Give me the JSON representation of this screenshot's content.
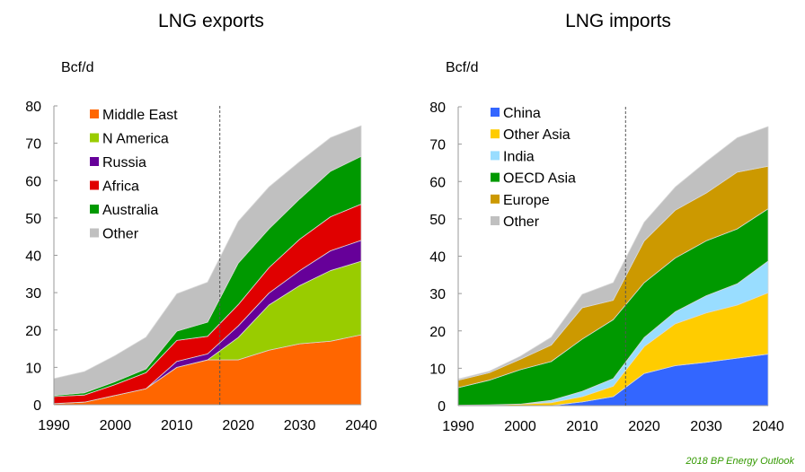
{
  "footer": "2018 BP Energy Outlook",
  "chart_data": [
    {
      "type": "area",
      "stacked": true,
      "title": "LNG exports",
      "ylabel": "Bcf/d",
      "xlabel": "",
      "ylim": [
        0,
        80
      ],
      "yticks": [
        0,
        10,
        20,
        30,
        40,
        50,
        60,
        70,
        80
      ],
      "xticks": [
        1990,
        2000,
        2010,
        2020,
        2030,
        2040
      ],
      "x": [
        1990,
        1995,
        2000,
        2005,
        2010,
        2015,
        2020,
        2025,
        2030,
        2035,
        2040
      ],
      "reference_line_year": 2017,
      "legend_position": "top-left",
      "series": [
        {
          "name": "Middle East",
          "color": "#ff6600",
          "values": [
            0.3,
            0.7,
            2.5,
            4.3,
            10.0,
            12.0,
            12.0,
            14.6,
            16.3,
            17.0,
            18.7
          ]
        },
        {
          "name": "N America",
          "color": "#99cc00",
          "values": [
            0,
            0,
            0,
            0,
            0,
            0,
            6.0,
            12.1,
            15.6,
            18.9,
            19.7
          ]
        },
        {
          "name": "Russia",
          "color": "#660099",
          "values": [
            0,
            0,
            0,
            0,
            1.6,
            1.6,
            3.1,
            3.2,
            4.0,
            5.3,
            5.6
          ]
        },
        {
          "name": "Africa",
          "color": "#e00000",
          "values": [
            1.9,
            1.9,
            2.9,
            4.3,
            5.6,
            4.7,
            5.7,
            6.8,
            8.4,
            9.1,
            9.7
          ]
        },
        {
          "name": "Australia",
          "color": "#009900",
          "values": [
            0.3,
            0.6,
            0.8,
            1.0,
            2.5,
            3.8,
            11.1,
            10.4,
            10.8,
            12.2,
            12.8
          ]
        },
        {
          "name": "Other",
          "color": "#c0c0c0",
          "values": [
            4.5,
            5.7,
            7.0,
            8.5,
            10.0,
            10.7,
            11.2,
            11.2,
            10.0,
            9.0,
            8.2
          ]
        }
      ]
    },
    {
      "type": "area",
      "stacked": true,
      "title": "LNG imports",
      "ylabel": "Bcf/d",
      "xlabel": "",
      "ylim": [
        0,
        80
      ],
      "yticks": [
        0,
        10,
        20,
        30,
        40,
        50,
        60,
        70,
        80
      ],
      "xticks": [
        1990,
        2000,
        2010,
        2020,
        2030,
        2040
      ],
      "x": [
        1990,
        1995,
        2000,
        2005,
        2010,
        2015,
        2020,
        2025,
        2030,
        2035,
        2040
      ],
      "reference_line_year": 2017,
      "legend_position": "top-left",
      "series": [
        {
          "name": "China",
          "color": "#3366ff",
          "values": [
            0,
            0,
            0,
            0,
            1.0,
            2.4,
            8.6,
            10.7,
            11.6,
            12.7,
            13.8
          ]
        },
        {
          "name": "Other Asia",
          "color": "#ffcc00",
          "values": [
            0.1,
            0.2,
            0.4,
            0.8,
            1.4,
            2.8,
            7.2,
            11.2,
            13.2,
            14.2,
            16.4
          ]
        },
        {
          "name": "India",
          "color": "#99ddff",
          "values": [
            0,
            0,
            0,
            0.6,
            1.4,
            2.0,
            2.4,
            3.2,
            4.6,
            5.7,
            8.5
          ]
        },
        {
          "name": "OECD Asia",
          "color": "#009900",
          "values": [
            4.7,
            6.6,
            9.2,
            10.4,
            14.0,
            15.8,
            14.7,
            14.4,
            14.7,
            14.7,
            14.0
          ]
        },
        {
          "name": "Europe",
          "color": "#cc9900",
          "values": [
            2.0,
            2.0,
            2.8,
            4.4,
            8.4,
            5.2,
            11.2,
            12.8,
            12.8,
            15.2,
            11.4
          ]
        },
        {
          "name": "Other",
          "color": "#c0c0c0",
          "values": [
            0.3,
            0.4,
            0.8,
            2.1,
            3.6,
            4.7,
            5.0,
            6.2,
            8.4,
            9.2,
            10.6
          ]
        }
      ]
    }
  ]
}
